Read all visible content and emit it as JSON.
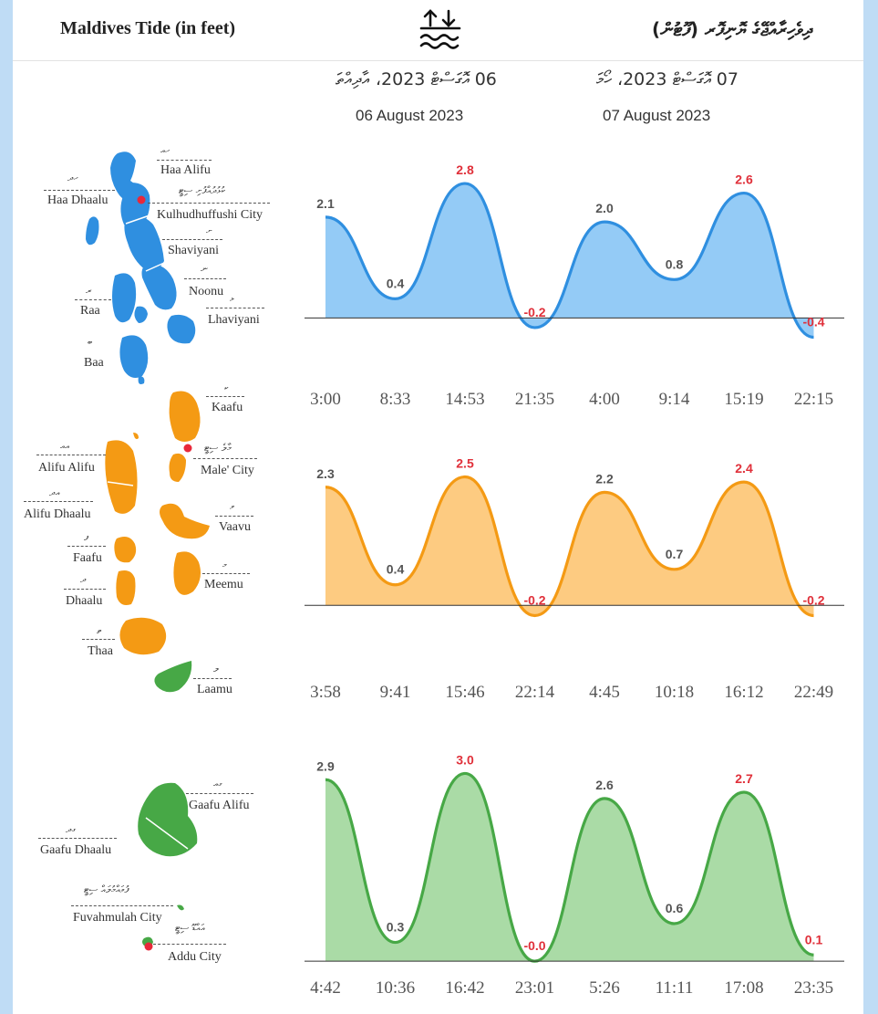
{
  "header": {
    "title": "Maldives Tide (in feet)",
    "title_dv": "ދިވެހިރާއްޖޭގެ ޔޮނިފޮރ (ފޫޓުން)",
    "icon": "tide-icon"
  },
  "dates": [
    {
      "dv": "06 އޮގަސްޓް 2023، އާދިއްތަ",
      "en": "06 August 2023"
    },
    {
      "dv": "07 އޮގަސްޓް 2023، ހޯމަ",
      "en": "07 August 2023"
    }
  ],
  "colors": {
    "blue": "#2f8fe0",
    "blue_fill": "#8ec8f6",
    "orange": "#f49a14",
    "orange_fill": "#fdc87a",
    "green": "#47a846",
    "green_fill": "#a5d9a1",
    "peak_label": "#e0303a",
    "low_label": "#555555"
  },
  "regions": {
    "north": [
      {
        "name": "Haa Alifu",
        "dv": "ހއ"
      },
      {
        "name": "Haa Dhaalu",
        "dv": "ހދ"
      },
      {
        "name": "Kulhudhuffushi City",
        "dv": "ކުޅުދުއްފުށި ސިޓީ"
      },
      {
        "name": "Shaviyani",
        "dv": "ށ"
      },
      {
        "name": "Noonu",
        "dv": "ނ"
      },
      {
        "name": "Raa",
        "dv": "ރ"
      },
      {
        "name": "Lhaviyani",
        "dv": "ޅ"
      },
      {
        "name": "Baa",
        "dv": "ބ"
      }
    ],
    "central": [
      {
        "name": "Kaafu",
        "dv": "ކ"
      },
      {
        "name": "Alifu Alifu",
        "dv": "އއ"
      },
      {
        "name": "Male' City",
        "dv": "މާލެ ސިޓީ"
      },
      {
        "name": "Alifu Dhaalu",
        "dv": "އދ"
      },
      {
        "name": "Vaavu",
        "dv": "ވ"
      },
      {
        "name": "Faafu",
        "dv": "ފ"
      },
      {
        "name": "Meemu",
        "dv": "މ"
      },
      {
        "name": "Dhaalu",
        "dv": "ދ"
      },
      {
        "name": "Thaa",
        "dv": "ތ"
      },
      {
        "name": "Laamu",
        "dv": "ލ"
      }
    ],
    "south": [
      {
        "name": "Gaafu Alifu",
        "dv": "ގއ"
      },
      {
        "name": "Gaafu Dhaalu",
        "dv": "ގދ"
      },
      {
        "name": "Fuvahmulah City",
        "dv": "ފުވައްމުލައް ސިޓީ"
      },
      {
        "name": "Addu City",
        "dv": "އައްޑޫ ސިޓީ"
      }
    ]
  },
  "chart_data": [
    {
      "type": "area",
      "region": "north",
      "times": [
        "3:00",
        "8:33",
        "14:53",
        "21:35",
        "4:00",
        "9:14",
        "15:19",
        "22:15"
      ],
      "values": [
        2.1,
        0.4,
        2.8,
        -0.2,
        2.0,
        0.8,
        2.6,
        -0.4
      ],
      "labels": [
        "2.1",
        "0.4",
        "2.8",
        "-0.2",
        "2.0",
        "0.8",
        "2.6",
        "-0.4"
      ],
      "kinds": [
        "high",
        "low",
        "high",
        "low",
        "high",
        "low",
        "high",
        "low"
      ],
      "ylim": [
        -0.6,
        3.2
      ]
    },
    {
      "type": "area",
      "region": "central",
      "times": [
        "3:58",
        "9:41",
        "15:46",
        "22:14",
        "4:45",
        "10:18",
        "16:12",
        "22:49"
      ],
      "values": [
        2.3,
        0.4,
        2.5,
        -0.2,
        2.2,
        0.7,
        2.4,
        -0.2
      ],
      "labels": [
        "2.3",
        "0.4",
        "2.5",
        "-0.2",
        "2.2",
        "0.7",
        "2.4",
        "-0.2"
      ],
      "kinds": [
        "high",
        "low",
        "high",
        "low",
        "high",
        "low",
        "high",
        "low"
      ],
      "ylim": [
        -0.6,
        2.9
      ]
    },
    {
      "type": "area",
      "region": "south",
      "times": [
        "4:42",
        "10:36",
        "16:42",
        "23:01",
        "5:26",
        "11:11",
        "17:08",
        "23:35"
      ],
      "values": [
        2.9,
        0.3,
        3.0,
        0.0,
        2.6,
        0.6,
        2.7,
        0.1
      ],
      "labels": [
        "2.9",
        "0.3",
        "3.0",
        "-0.0",
        "2.6",
        "0.6",
        "2.7",
        "0.1"
      ],
      "kinds": [
        "high",
        "low",
        "high",
        "low",
        "high",
        "low",
        "high",
        "low"
      ],
      "ylim": [
        -0.1,
        3.4
      ]
    }
  ]
}
